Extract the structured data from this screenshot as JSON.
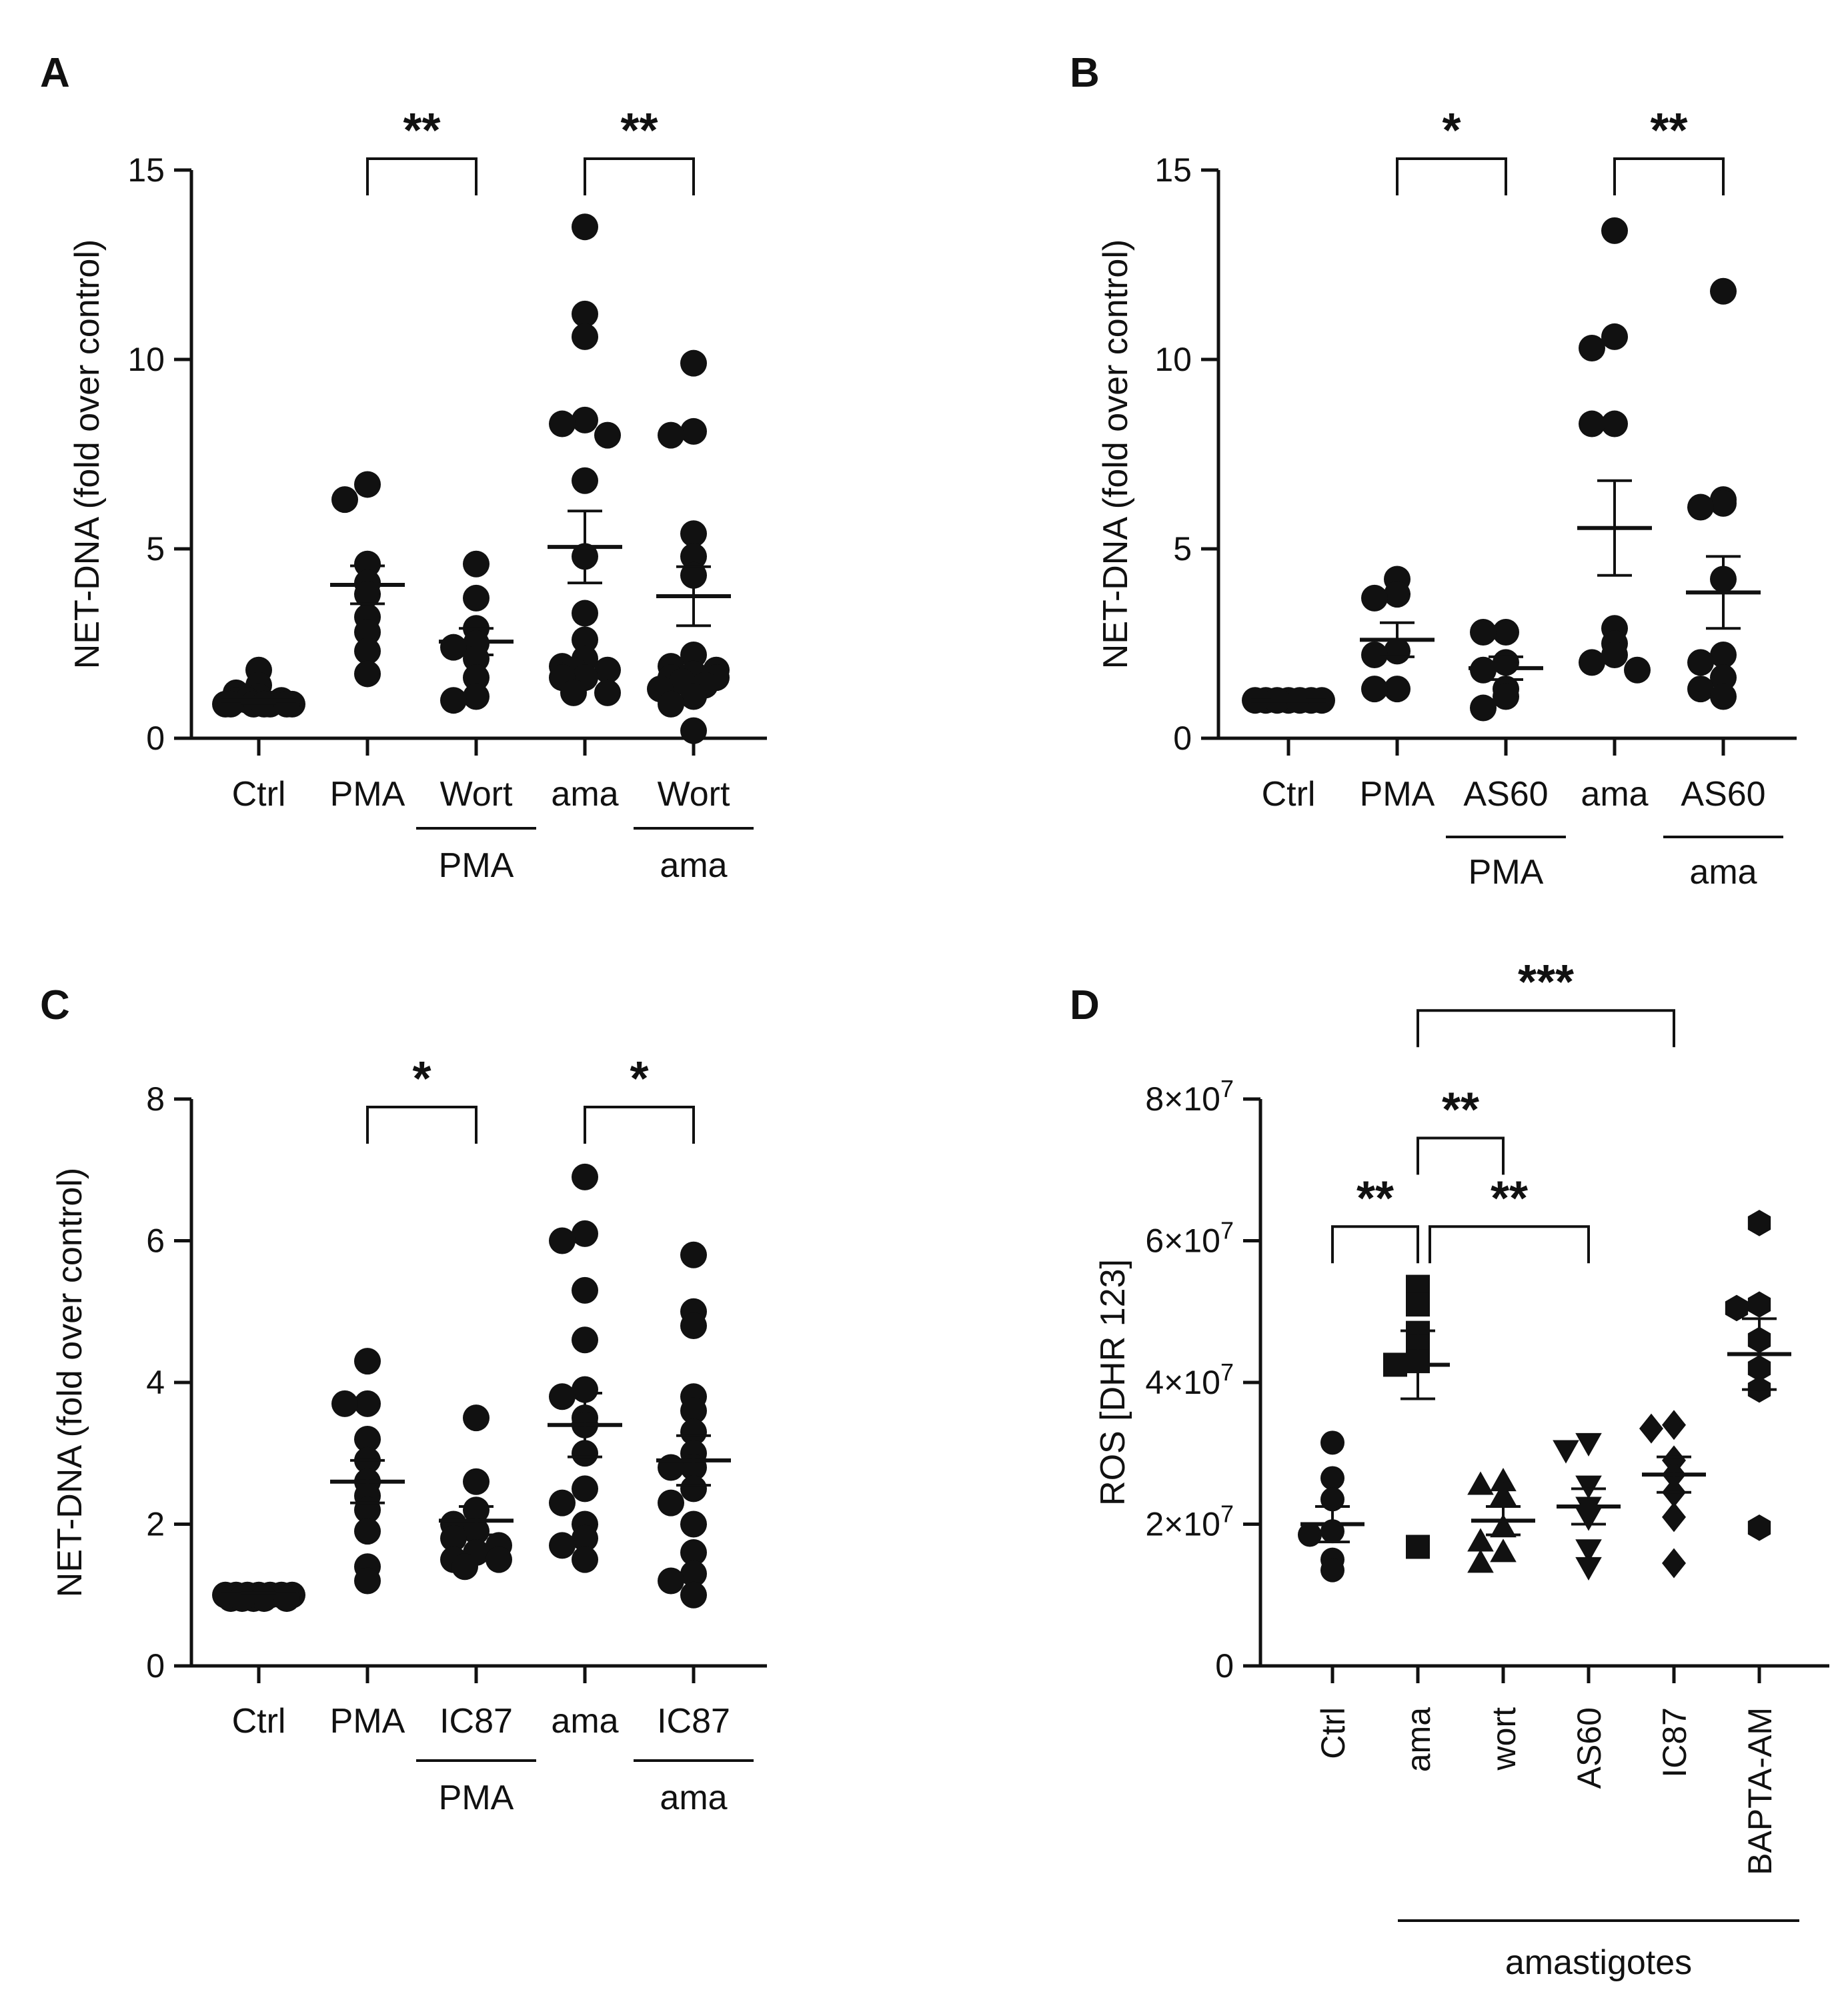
{
  "colors": {
    "ink": "#111111",
    "background": "#ffffff"
  },
  "chart_data": [
    {
      "panel": "A",
      "type": "scatter",
      "ylabel": "NET-DNA (fold over control)",
      "ylim": [
        0,
        15
      ],
      "yticks": [
        0,
        5,
        10,
        15
      ],
      "ytick_labels": [
        "0",
        "5",
        "10",
        "15"
      ],
      "categories": [
        "Ctrl",
        "PMA",
        "Wort",
        "ama",
        "Wort"
      ],
      "groups": [
        {
          "label": "PMA",
          "from": 2,
          "to": 2
        },
        {
          "label": "ama",
          "from": 4,
          "to": 4
        }
      ],
      "series": [
        {
          "marker": "circle",
          "mean": 1.0,
          "sem": 0.08,
          "points": [
            1.8,
            1.4,
            1.2,
            1.1,
            1.0,
            1.0,
            1.0,
            0.9,
            0.9,
            0.9,
            0.9,
            0.9,
            0.9,
            0.9
          ]
        },
        {
          "marker": "circle",
          "mean": 4.05,
          "sem": 0.5,
          "points": [
            6.7,
            6.3,
            4.6,
            4.1,
            3.8,
            3.2,
            2.8,
            2.3,
            1.7
          ]
        },
        {
          "marker": "circle",
          "mean": 2.55,
          "sem": 0.35,
          "points": [
            4.6,
            3.7,
            2.9,
            2.5,
            2.4,
            2.1,
            1.6,
            1.1,
            1.0
          ]
        },
        {
          "marker": "circle",
          "mean": 5.05,
          "sem": 0.95,
          "points": [
            13.5,
            11.2,
            10.6,
            8.4,
            8.3,
            8.0,
            6.8,
            4.8,
            3.3,
            2.6,
            2.1,
            1.9,
            1.8,
            1.8,
            1.6,
            1.6,
            1.2,
            1.2
          ]
        },
        {
          "marker": "circle",
          "mean": 3.75,
          "sem": 0.78,
          "points": [
            9.9,
            8.1,
            8.0,
            5.4,
            4.8,
            4.3,
            2.2,
            1.9,
            1.8,
            1.7,
            1.6,
            1.6,
            1.5,
            1.4,
            1.3,
            1.1,
            0.9,
            0.2
          ]
        }
      ],
      "significance": [
        {
          "from": 1,
          "to": 2,
          "label": "**",
          "y": 15
        },
        {
          "from": 3,
          "to": 4,
          "label": "**",
          "y": 15
        }
      ]
    },
    {
      "panel": "B",
      "type": "scatter",
      "ylabel": "NET-DNA (fold over control)",
      "ylim": [
        0,
        15
      ],
      "yticks": [
        0,
        5,
        10,
        15
      ],
      "ytick_labels": [
        "0",
        "5",
        "10",
        "15"
      ],
      "categories": [
        "Ctrl",
        "PMA",
        "AS60",
        "ama",
        "AS60"
      ],
      "groups": [
        {
          "label": "PMA",
          "from": 2,
          "to": 2
        },
        {
          "label": "ama",
          "from": 4,
          "to": 4
        }
      ],
      "series": [
        {
          "marker": "circle",
          "mean": 1.0,
          "sem": 0.03,
          "points": [
            1.0,
            1.0,
            1.0,
            1.0,
            1.0,
            1.0,
            1.0
          ]
        },
        {
          "marker": "circle",
          "mean": 2.6,
          "sem": 0.45,
          "points": [
            4.2,
            3.8,
            3.7,
            2.3,
            2.2,
            1.3,
            1.3
          ]
        },
        {
          "marker": "circle",
          "mean": 1.85,
          "sem": 0.3,
          "points": [
            2.8,
            2.8,
            2.0,
            1.8,
            1.3,
            1.1,
            0.8
          ]
        },
        {
          "marker": "circle",
          "mean": 5.55,
          "sem": 1.25,
          "points": [
            13.4,
            10.6,
            10.3,
            8.3,
            8.3,
            2.9,
            2.5,
            2.2,
            2.0,
            1.8
          ]
        },
        {
          "marker": "circle",
          "mean": 3.85,
          "sem": 0.95,
          "points": [
            11.8,
            6.3,
            6.2,
            6.1,
            4.2,
            2.2,
            2.0,
            1.6,
            1.3,
            1.1
          ]
        }
      ],
      "significance": [
        {
          "from": 1,
          "to": 2,
          "label": "*",
          "y": 15
        },
        {
          "from": 3,
          "to": 4,
          "label": "**",
          "y": 15
        }
      ]
    },
    {
      "panel": "C",
      "type": "scatter",
      "ylabel": "NET-DNA (fold over control)",
      "ylim": [
        0,
        8
      ],
      "yticks": [
        0,
        2,
        4,
        6,
        8
      ],
      "ytick_labels": [
        "0",
        "2",
        "4",
        "6",
        "8"
      ],
      "categories": [
        "Ctrl",
        "PMA",
        "IC87",
        "ama",
        "IC87"
      ],
      "groups": [
        {
          "label": "PMA",
          "from": 2,
          "to": 2
        },
        {
          "label": "ama",
          "from": 4,
          "to": 4
        }
      ],
      "series": [
        {
          "marker": "circle",
          "mean": 1.0,
          "sem": 0.03,
          "points": [
            1.0,
            1.0,
            1.0,
            1.0,
            1.0,
            1.0,
            1.0,
            0.95,
            0.95,
            0.95,
            0.95,
            0.95
          ]
        },
        {
          "marker": "circle",
          "mean": 2.6,
          "sem": 0.3,
          "points": [
            4.3,
            3.7,
            3.7,
            3.2,
            2.9,
            2.6,
            2.4,
            2.2,
            1.9,
            1.4,
            1.2
          ]
        },
        {
          "marker": "circle",
          "mean": 2.05,
          "sem": 0.2,
          "points": [
            3.5,
            2.6,
            2.2,
            2.0,
            1.9,
            1.8,
            1.7,
            1.6,
            1.5,
            1.5,
            1.4
          ]
        },
        {
          "marker": "circle",
          "mean": 3.4,
          "sem": 0.45,
          "points": [
            6.9,
            6.1,
            6.0,
            5.3,
            4.6,
            3.9,
            3.8,
            3.5,
            3.4,
            3.0,
            2.5,
            2.3,
            2.0,
            1.8,
            1.7,
            1.5
          ]
        },
        {
          "marker": "circle",
          "mean": 2.9,
          "sem": 0.35,
          "points": [
            5.8,
            5.0,
            4.8,
            3.8,
            3.6,
            3.3,
            3.0,
            2.8,
            2.8,
            2.5,
            2.3,
            2.0,
            1.6,
            1.3,
            1.2,
            1.0
          ]
        }
      ],
      "significance": [
        {
          "from": 1,
          "to": 2,
          "label": "*",
          "y": 8
        },
        {
          "from": 3,
          "to": 4,
          "label": "*",
          "y": 8
        }
      ]
    },
    {
      "panel": "D",
      "type": "scatter",
      "ylabel": "ROS [DHR 123]",
      "ylim": [
        0,
        80000000
      ],
      "yticks": [
        0,
        20000000,
        40000000,
        60000000,
        80000000
      ],
      "ytick_labels": [
        {
          "base": "0",
          "exp": ""
        },
        {
          "base": "2×10",
          "exp": "7"
        },
        {
          "base": "4×10",
          "exp": "7"
        },
        {
          "base": "6×10",
          "exp": "7"
        },
        {
          "base": "8×10",
          "exp": "7"
        }
      ],
      "categories": [
        "Ctrl",
        "ama",
        "wort",
        "AS60",
        "IC87",
        "BAPTA-AM"
      ],
      "groups": [
        {
          "label": "amastigotes",
          "from": 1,
          "to": 5
        }
      ],
      "series": [
        {
          "marker": "circle",
          "mean": 20000000,
          "sem": 2500000,
          "points": [
            31500000,
            26500000,
            23500000,
            19000000,
            18500000,
            15000000,
            13500000
          ]
        },
        {
          "marker": "square",
          "mean": 42500000,
          "sem": 4800000,
          "points": [
            53500000,
            51000000,
            47000000,
            45000000,
            43000000,
            42500000,
            16800000
          ]
        },
        {
          "marker": "triangle-up",
          "mean": 20500000,
          "sem": 2000000,
          "points": [
            26000000,
            25500000,
            24000000,
            19500000,
            17500000,
            16000000,
            14500000
          ]
        },
        {
          "marker": "triangle-down",
          "mean": 22500000,
          "sem": 2500000,
          "points": [
            31500000,
            30500000,
            25500000,
            22500000,
            21000000,
            16500000,
            14000000
          ]
        },
        {
          "marker": "diamond",
          "mean": 27000000,
          "sem": 2500000,
          "points": [
            34000000,
            33500000,
            29000000,
            27000000,
            24500000,
            21000000,
            14500000
          ]
        },
        {
          "marker": "hexagon",
          "mean": 44000000,
          "sem": 5000000,
          "points": [
            62500000,
            51000000,
            50500000,
            46000000,
            42000000,
            39000000,
            19500000
          ]
        }
      ],
      "significance": [
        {
          "from": 0,
          "to": 1,
          "label": "**",
          "y": 62000000,
          "label_side": "left"
        },
        {
          "from": 1,
          "to": 2,
          "label": "**",
          "y": 74500000
        },
        {
          "from": 1,
          "to": 3,
          "label": "**",
          "y": 62000000
        },
        {
          "from": 1,
          "to": 4,
          "label": "***",
          "y": 92500000
        }
      ]
    }
  ],
  "panel_labels": [
    "A",
    "B",
    "C",
    "D"
  ]
}
